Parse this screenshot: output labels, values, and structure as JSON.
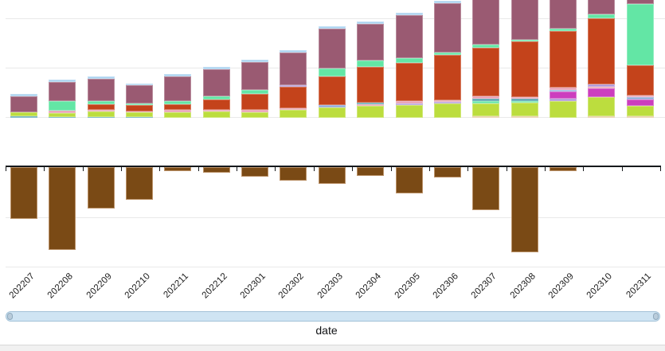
{
  "chart_data": {
    "type": "bar",
    "stacked": true,
    "title": "",
    "xlabel": "date",
    "ylabel": "",
    "legend_visible": false,
    "y_axis_labels_visible": false,
    "grid": "horizontal",
    "ylim": [
      -145,
      195
    ],
    "units_note": "relative units estimated from pixels; gridline spacing = 62 units; no y-axis value labels are visible in the screenshot",
    "palette": {
      "lightblue": "#a9d2ef",
      "purple": "#9a5a72",
      "mint": "#63e6a5",
      "orange": "#c4431b",
      "pink": "#e79bb1",
      "periwinkle": "#8fa8d9",
      "magenta": "#cc3ebe",
      "lavender": "#ac92d6",
      "yellowgreen": "#bcdd3e",
      "teal": "#4e9fac",
      "cream": "#e2c693",
      "brown": "#7a4a15"
    },
    "categories": [
      "202207",
      "202208",
      "202209",
      "202210",
      "202211",
      "202212",
      "202301",
      "202302",
      "202303",
      "202304",
      "202305",
      "202306",
      "202307",
      "202308",
      "202309",
      "202310",
      "202311"
    ],
    "bars": [
      {
        "label": "202207",
        "pos": [
          {
            "c": "lightblue",
            "v": 3
          },
          {
            "c": "purple",
            "v": 20
          },
          {
            "c": "yellowgreen",
            "v": 5
          },
          {
            "c": "teal",
            "v": 2
          }
        ],
        "neg": [
          {
            "c": "brown",
            "v": 65
          }
        ]
      },
      {
        "label": "202208",
        "pos": [
          {
            "c": "lightblue",
            "v": 3
          },
          {
            "c": "purple",
            "v": 24
          },
          {
            "c": "mint",
            "v": 12
          },
          {
            "c": "pink",
            "v": 3
          },
          {
            "c": "yellowgreen",
            "v": 5
          },
          {
            "c": "teal",
            "v": 1
          }
        ],
        "neg": [
          {
            "c": "brown",
            "v": 104
          }
        ]
      },
      {
        "label": "202209",
        "pos": [
          {
            "c": "lightblue",
            "v": 3
          },
          {
            "c": "purple",
            "v": 28
          },
          {
            "c": "mint",
            "v": 4
          },
          {
            "c": "orange",
            "v": 7
          },
          {
            "c": "pink",
            "v": 2
          },
          {
            "c": "yellowgreen",
            "v": 7
          },
          {
            "c": "teal",
            "v": 1
          }
        ],
        "neg": [
          {
            "c": "brown",
            "v": 52
          }
        ]
      },
      {
        "label": "202210",
        "pos": [
          {
            "c": "lightblue",
            "v": 2
          },
          {
            "c": "purple",
            "v": 23
          },
          {
            "c": "mint",
            "v": 2
          },
          {
            "c": "orange",
            "v": 8
          },
          {
            "c": "pink",
            "v": 1
          },
          {
            "c": "yellowgreen",
            "v": 6
          },
          {
            "c": "teal",
            "v": 1
          }
        ],
        "neg": [
          {
            "c": "brown",
            "v": 41
          }
        ]
      },
      {
        "label": "202211",
        "pos": [
          {
            "c": "lightblue",
            "v": 3
          },
          {
            "c": "purple",
            "v": 31
          },
          {
            "c": "mint",
            "v": 4
          },
          {
            "c": "orange",
            "v": 7
          },
          {
            "c": "pink",
            "v": 3
          },
          {
            "c": "yellowgreen",
            "v": 7
          }
        ],
        "neg": [
          {
            "c": "brown",
            "v": 5
          }
        ]
      },
      {
        "label": "202212",
        "pos": [
          {
            "c": "lightblue",
            "v": 3
          },
          {
            "c": "purple",
            "v": 34
          },
          {
            "c": "mint",
            "v": 4
          },
          {
            "c": "orange",
            "v": 13
          },
          {
            "c": "pink",
            "v": 2
          },
          {
            "c": "yellowgreen",
            "v": 8
          }
        ],
        "neg": [
          {
            "c": "brown",
            "v": 7
          }
        ]
      },
      {
        "label": "202301",
        "pos": [
          {
            "c": "lightblue",
            "v": 3
          },
          {
            "c": "purple",
            "v": 35
          },
          {
            "c": "mint",
            "v": 5
          },
          {
            "c": "orange",
            "v": 20
          },
          {
            "c": "pink",
            "v": 3
          },
          {
            "c": "yellowgreen",
            "v": 7
          }
        ],
        "neg": [
          {
            "c": "brown",
            "v": 12
          }
        ]
      },
      {
        "label": "202302",
        "pos": [
          {
            "c": "lightblue",
            "v": 3
          },
          {
            "c": "purple",
            "v": 41
          },
          {
            "c": "lavender",
            "v": 2
          },
          {
            "c": "orange",
            "v": 27
          },
          {
            "c": "pink",
            "v": 2
          },
          {
            "c": "yellowgreen",
            "v": 10
          }
        ],
        "neg": [
          {
            "c": "brown",
            "v": 17
          }
        ]
      },
      {
        "label": "202303",
        "pos": [
          {
            "c": "lightblue",
            "v": 3
          },
          {
            "c": "purple",
            "v": 50
          },
          {
            "c": "mint",
            "v": 10
          },
          {
            "c": "orange",
            "v": 36
          },
          {
            "c": "periwinkle",
            "v": 3
          },
          {
            "c": "yellowgreen",
            "v": 13
          }
        ],
        "neg": [
          {
            "c": "brown",
            "v": 21
          }
        ]
      },
      {
        "label": "202304",
        "pos": [
          {
            "c": "lightblue",
            "v": 3
          },
          {
            "c": "purple",
            "v": 46
          },
          {
            "c": "mint",
            "v": 8
          },
          {
            "c": "orange",
            "v": 45
          },
          {
            "c": "teal",
            "v": 2
          },
          {
            "c": "pink",
            "v": 2
          },
          {
            "c": "yellowgreen",
            "v": 15
          }
        ],
        "neg": [
          {
            "c": "brown",
            "v": 11
          }
        ]
      },
      {
        "label": "202305",
        "pos": [
          {
            "c": "lightblue",
            "v": 3
          },
          {
            "c": "purple",
            "v": 54
          },
          {
            "c": "mint",
            "v": 6
          },
          {
            "c": "orange",
            "v": 48
          },
          {
            "c": "pink",
            "v": 3
          },
          {
            "c": "lavender",
            "v": 2
          },
          {
            "c": "yellowgreen",
            "v": 16
          }
        ],
        "neg": [
          {
            "c": "brown",
            "v": 33
          }
        ]
      },
      {
        "label": "202306",
        "pos": [
          {
            "c": "lightblue",
            "v": 3
          },
          {
            "c": "purple",
            "v": 62
          },
          {
            "c": "mint",
            "v": 3
          },
          {
            "c": "orange",
            "v": 57
          },
          {
            "c": "pink",
            "v": 2
          },
          {
            "c": "lavender",
            "v": 2
          },
          {
            "c": "yellowgreen",
            "v": 18
          }
        ],
        "neg": [
          {
            "c": "brown",
            "v": 13
          }
        ]
      },
      {
        "label": "202307",
        "pos": [
          {
            "c": "lightblue",
            "v": 3
          },
          {
            "c": "purple",
            "v": 66
          },
          {
            "c": "mint",
            "v": 4
          },
          {
            "c": "orange",
            "v": 61
          },
          {
            "c": "pink",
            "v": 3
          },
          {
            "c": "teal",
            "v": 3
          },
          {
            "c": "mint",
            "v": 3
          },
          {
            "c": "yellowgreen",
            "v": 16
          },
          {
            "c": "cream",
            "v": 2
          }
        ],
        "neg": [
          {
            "c": "brown",
            "v": 54
          }
        ]
      },
      {
        "label": "202308",
        "pos": [
          {
            "c": "lightblue",
            "v": 3
          },
          {
            "c": "purple",
            "v": 71
          },
          {
            "c": "mint",
            "v": 2
          },
          {
            "c": "orange",
            "v": 70
          },
          {
            "c": "pink",
            "v": 2
          },
          {
            "c": "teal",
            "v": 3
          },
          {
            "c": "mint",
            "v": 2
          },
          {
            "c": "yellowgreen",
            "v": 17
          },
          {
            "c": "cream",
            "v": 2
          }
        ],
        "neg": [
          {
            "c": "brown",
            "v": 107
          }
        ]
      },
      {
        "label": "202309",
        "pos": [
          {
            "c": "lightblue",
            "v": 3
          },
          {
            "c": "purple",
            "v": 63
          },
          {
            "c": "mint",
            "v": 3
          },
          {
            "c": "orange",
            "v": 71
          },
          {
            "c": "pink",
            "v": 3
          },
          {
            "c": "periwinkle",
            "v": 2
          },
          {
            "c": "magenta",
            "v": 9
          },
          {
            "c": "lavender",
            "v": 3
          },
          {
            "c": "yellowgreen",
            "v": 21
          }
        ],
        "neg": [
          {
            "c": "brown",
            "v": 5
          }
        ]
      },
      {
        "label": "202310",
        "pos": [
          {
            "c": "lightblue",
            "v": 4
          },
          {
            "c": "purple",
            "v": 52
          },
          {
            "c": "mint",
            "v": 5
          },
          {
            "c": "orange",
            "v": 83
          },
          {
            "c": "lavender",
            "v": 3
          },
          {
            "c": "pink",
            "v": 2
          },
          {
            "c": "magenta",
            "v": 11
          },
          {
            "c": "yellowgreen",
            "v": 24
          },
          {
            "c": "cream",
            "v": 2
          }
        ],
        "neg": []
      },
      {
        "label": "202311",
        "pos": [
          {
            "c": "lightblue",
            "v": 2
          },
          {
            "c": "purple",
            "v": 36
          },
          {
            "c": "mint",
            "v": 77
          },
          {
            "c": "orange",
            "v": 38
          },
          {
            "c": "pink",
            "v": 2
          },
          {
            "c": "periwinkle",
            "v": 3
          },
          {
            "c": "magenta",
            "v": 8
          },
          {
            "c": "yellowgreen",
            "v": 13
          },
          {
            "c": "cream",
            "v": 2
          }
        ],
        "neg": []
      }
    ]
  }
}
